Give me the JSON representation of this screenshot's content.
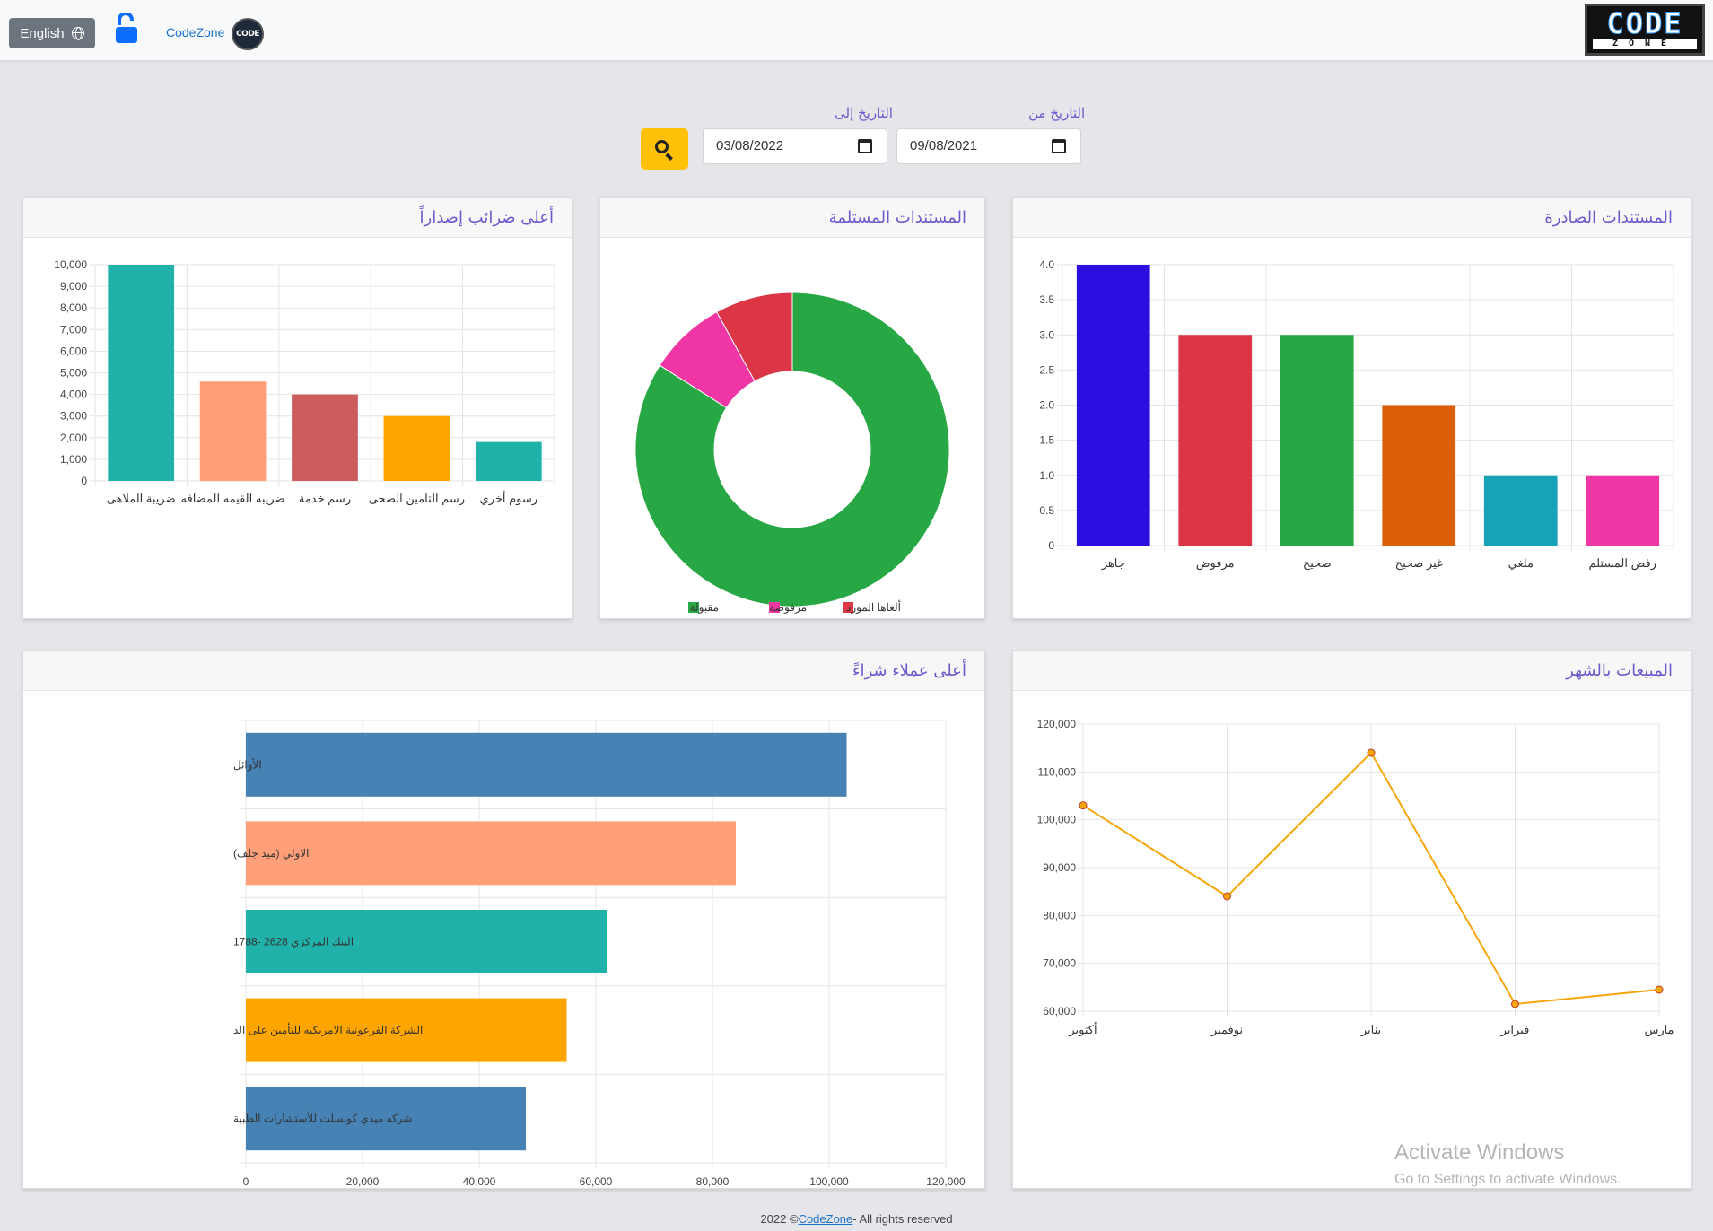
{
  "navbar": {
    "language_button": "English",
    "brand_link": "CodeZone",
    "brand_badge": "CODE",
    "logo_top": "CODE",
    "logo_bottom": "ZONE"
  },
  "filters": {
    "date_from_label": "التاريخ من",
    "date_from_value": "09/08/2021",
    "date_to_label": "التاريخ إلى",
    "date_to_value": "03/08/2022"
  },
  "cards": {
    "issued_documents": "المستندات الصادرة",
    "received_documents": "المستندات المستلمة",
    "top_taxes": "أعلى ضرائب إصداراً",
    "monthly_sales": "المبيعات بالشهر",
    "top_customers": "أعلى عملاء شراءً"
  },
  "footer": {
    "prefix": "2022 ©",
    "link": "CodeZone",
    "suffix": "- All rights reserved"
  },
  "watermark": {
    "line1": "Activate Windows",
    "line2": "Go to Settings to activate Windows."
  },
  "chart_data": [
    {
      "id": "issued",
      "type": "bar",
      "categories": [
        "جاهز",
        "مرفوض",
        "صحيح",
        "غير صحيح",
        "ملغي",
        "رفض المستلم"
      ],
      "values": [
        4,
        3,
        3,
        2,
        1,
        1
      ],
      "colors": [
        "#2a0fe0",
        "#dc3545",
        "#28a745",
        "#db5f07",
        "#17a2b8",
        "#f036a4"
      ],
      "ylim": [
        0,
        4
      ],
      "yticks": [
        "0",
        "0.5",
        "1.0",
        "1.5",
        "2.0",
        "2.5",
        "3.0",
        "3.5",
        "4.0"
      ],
      "grid": true
    },
    {
      "id": "received",
      "type": "pie",
      "labels": [
        "مقبولة",
        "مرفوضة",
        "ألغاها المورد"
      ],
      "values": [
        84,
        8,
        8
      ],
      "colors": [
        "#28a745",
        "#f036a4",
        "#dc3545"
      ],
      "legend": "bottom"
    },
    {
      "id": "taxes",
      "type": "bar",
      "categories": [
        "ضريبة الملاهى",
        "ضريبه القيمه المضافه",
        "رسم خدمة",
        "رسم التامين الصحى",
        "رسوم أخري"
      ],
      "values": [
        10000,
        4600,
        4000,
        3000,
        1800
      ],
      "colors": [
        "#20b2aa",
        "#ffa07a",
        "#cd5c5c",
        "#ffa500",
        "#20b2aa"
      ],
      "ylim": [
        0,
        10000
      ],
      "yticks": [
        "0",
        "1,000",
        "2,000",
        "3,000",
        "4,000",
        "5,000",
        "6,000",
        "7,000",
        "8,000",
        "9,000",
        "10,000"
      ],
      "grid": true
    },
    {
      "id": "sales",
      "type": "line",
      "categories": [
        "أكتوبر",
        "نوفمبر",
        "يناير",
        "فبراير",
        "مارس"
      ],
      "values": [
        103000,
        84000,
        114000,
        61500,
        64500
      ],
      "color": "#f5a60a",
      "ylim": [
        60000,
        120000
      ],
      "yticks": [
        "60,000",
        "70,000",
        "80,000",
        "90,000",
        "100,000",
        "110,000",
        "120,000"
      ],
      "grid": true
    },
    {
      "id": "customers",
      "type": "bar",
      "orientation": "horizontal",
      "categories": [
        "الأوائل",
        "الاولي (ميد جلف)",
        "البنك المركزي 2628 -1788",
        "الشركة الفرعونية الامريكيه للتأمين على الد",
        "شركه ميدي كونسلت للأستشارات الطبية"
      ],
      "values": [
        103000,
        84000,
        62000,
        55000,
        48000
      ],
      "colors": [
        "#4682b4",
        "#ffa07a",
        "#20b2aa",
        "#ffa500",
        "#4682b4"
      ],
      "xlim": [
        0,
        120000
      ],
      "xticks": [
        "0",
        "20,000",
        "40,000",
        "60,000",
        "80,000",
        "100,000",
        "120,000"
      ],
      "grid": true
    }
  ]
}
